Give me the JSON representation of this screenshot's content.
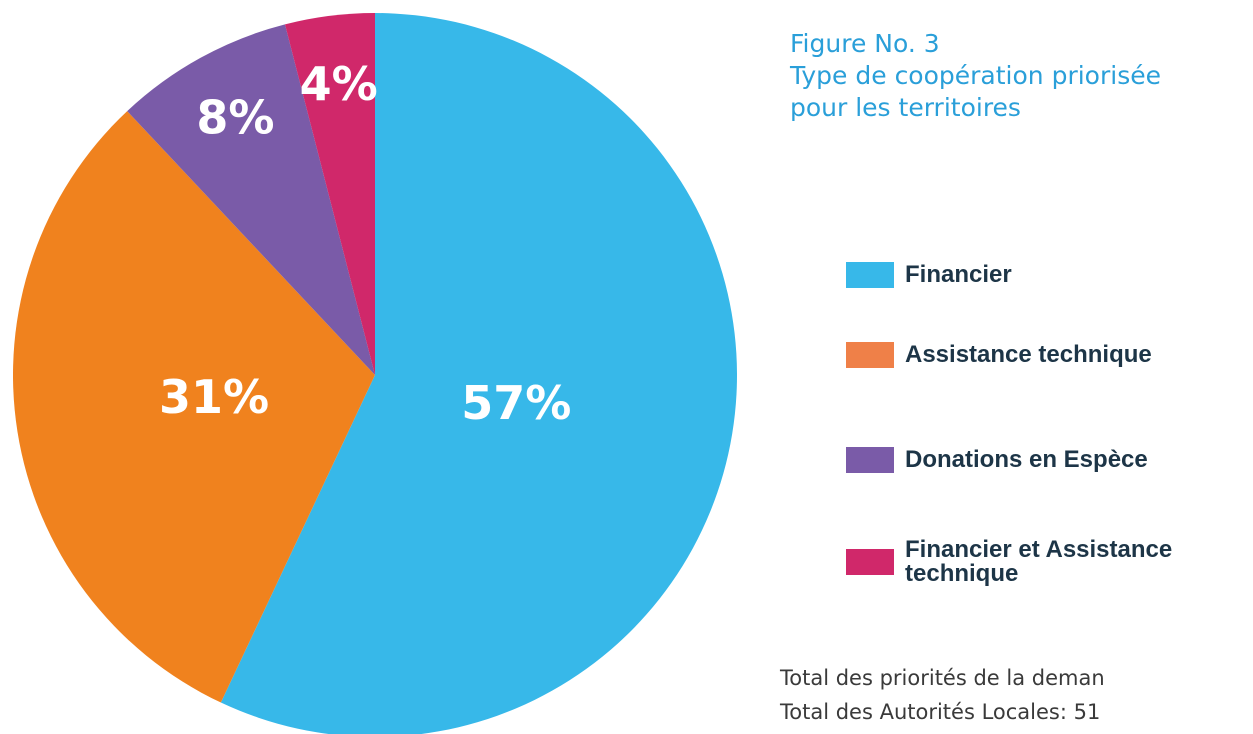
{
  "chart_data": {
    "type": "pie",
    "title": "Figure No. 3",
    "subtitle": [
      "Type de coopération priorisée",
      "pour les territoires"
    ],
    "categories": [
      "Financier",
      "Assistance technique",
      "Donations en Espèce",
      "Financier et Assistance technique"
    ],
    "values": [
      57,
      31,
      8,
      4
    ],
    "value_labels": [
      "57%",
      "31%",
      "8%",
      "4%"
    ],
    "colors": [
      "#37b8e9",
      "#f0821e",
      "#7a5ba8",
      "#d0286a"
    ],
    "legend_colors": [
      "#37b8e9",
      "#ef8048",
      "#7a5ba8",
      "#d0286a"
    ],
    "notes": [
      "Total des priorités de la deman",
      "Total des Autorités Locales: 51"
    ]
  }
}
